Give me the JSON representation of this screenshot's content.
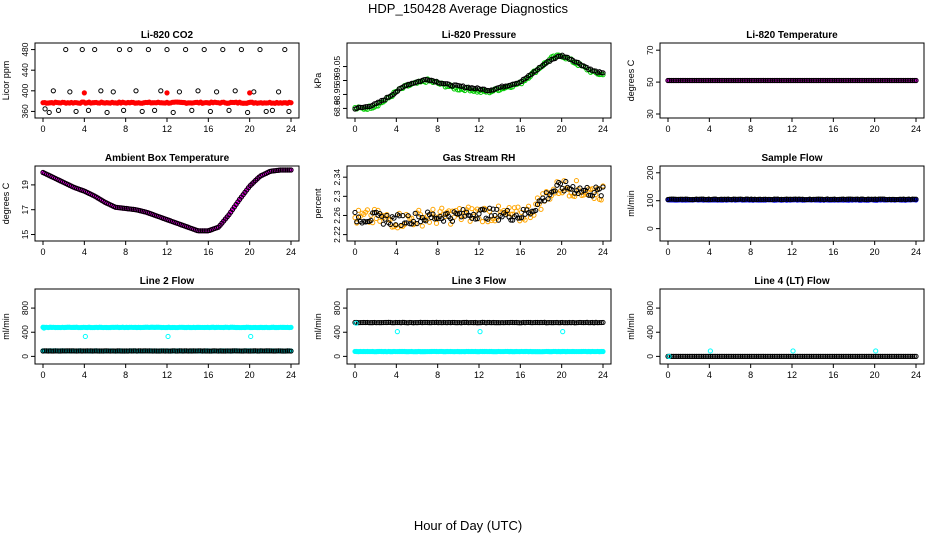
{
  "page": {
    "title": "HDP_150428  Average Diagnostics",
    "xlabel": "Hour of Day (UTC)"
  },
  "colors": {
    "black": "#000000",
    "red": "#ff0000",
    "green": "#00cc00",
    "magenta": "#ff00ff",
    "orange": "#ffa500",
    "blue": "#0000ff",
    "cyan": "#00ffff"
  },
  "chart_data": [
    {
      "type": "scatter",
      "title": "Li-820 CO2",
      "ylabel": "Licor ppm",
      "xlim": [
        0,
        24
      ],
      "xticks": [
        0,
        4,
        8,
        12,
        16,
        20,
        24
      ],
      "ylim": [
        355,
        485
      ],
      "yticks": [
        360,
        400,
        440,
        480
      ],
      "series": [
        {
          "color": "#ff0000",
          "filled": true,
          "kind": "flat",
          "value": 377,
          "noise": 1.2
        },
        {
          "color": "#000000",
          "filled": false,
          "kind": "points",
          "x": [
            0.2,
            0.6,
            1.0,
            1.5,
            2.2,
            2.6,
            3.2,
            3.8,
            4.4,
            5.0,
            5.6,
            6.2,
            6.8,
            7.4,
            7.8,
            8.4,
            9.0,
            9.6,
            10.2,
            10.8,
            11.4,
            12.0,
            12.6,
            13.2,
            13.8,
            14.4,
            15.0,
            15.6,
            16.2,
            16.8,
            17.4,
            18.0,
            18.6,
            19.2,
            19.8,
            20.4,
            21.0,
            21.6,
            22.2,
            22.8,
            23.4,
            23.8
          ],
          "y": [
            365,
            358,
            400,
            362,
            480,
            398,
            360,
            480,
            362,
            480,
            400,
            358,
            398,
            480,
            362,
            480,
            400,
            360,
            480,
            362,
            400,
            480,
            358,
            398,
            480,
            362,
            400,
            480,
            360,
            398,
            480,
            362,
            400,
            480,
            358,
            398,
            480,
            360,
            362,
            398,
            480,
            360
          ]
        },
        {
          "color": "#ff0000",
          "filled": true,
          "kind": "points",
          "x": [
            4.0,
            12.0,
            20.0
          ],
          "y": [
            396,
            396,
            396
          ]
        }
      ]
    },
    {
      "type": "scatter",
      "title": "Li-820 Pressure",
      "ylabel": "kPa",
      "xlim": [
        0,
        24
      ],
      "xticks": [
        0,
        4,
        8,
        12,
        16,
        20,
        24
      ],
      "ylim": [
        68.88,
        69.12
      ],
      "yticks": [
        68.9,
        68.95,
        69.0,
        69.05
      ],
      "series": [
        {
          "color": "#00cc00",
          "filled": false,
          "kind": "curve",
          "x": [
            0,
            1,
            2,
            3,
            4,
            5,
            6,
            7,
            8,
            9,
            10,
            11,
            12,
            13,
            14,
            15,
            16,
            17,
            18,
            19,
            20,
            21,
            22,
            23,
            24
          ],
          "y": [
            68.9,
            68.9,
            68.91,
            68.93,
            68.96,
            68.98,
            68.99,
            69.0,
            68.99,
            68.98,
            68.97,
            68.97,
            68.96,
            68.96,
            68.97,
            68.98,
            68.99,
            69.02,
            69.05,
            69.08,
            69.09,
            69.07,
            69.05,
            69.03,
            69.02
          ],
          "noise": 0.006
        },
        {
          "color": "#000000",
          "filled": false,
          "kind": "curve",
          "x": [
            0,
            1,
            2,
            3,
            4,
            5,
            6,
            7,
            8,
            9,
            10,
            11,
            12,
            13,
            14,
            15,
            16,
            17,
            18,
            19,
            20,
            21,
            22,
            23,
            24
          ],
          "y": [
            68.9,
            68.905,
            68.915,
            68.935,
            68.96,
            68.985,
            68.995,
            69.005,
            68.995,
            68.985,
            68.98,
            68.975,
            68.97,
            68.965,
            68.975,
            68.985,
            68.995,
            69.02,
            69.05,
            69.075,
            69.09,
            69.075,
            69.055,
            69.035,
            69.025
          ],
          "noise": 0.003
        }
      ]
    },
    {
      "type": "scatter",
      "title": "Li-820 Temperature",
      "ylabel": "degrees C",
      "xlim": [
        0,
        24
      ],
      "xticks": [
        0,
        4,
        8,
        12,
        16,
        20,
        24
      ],
      "ylim": [
        30,
        72
      ],
      "yticks": [
        30,
        50,
        70
      ],
      "series": [
        {
          "color": "#ff00ff",
          "filled": true,
          "kind": "flat",
          "value": 51,
          "noise": 0
        },
        {
          "color": "#000000",
          "filled": false,
          "kind": "flat",
          "value": 51,
          "noise": 0
        }
      ]
    },
    {
      "type": "scatter",
      "title": "Ambient Box Temperature",
      "ylabel": "degrees C",
      "xlim": [
        0,
        24
      ],
      "xticks": [
        0,
        4,
        8,
        12,
        16,
        20,
        24
      ],
      "ylim": [
        14.8,
        20.2
      ],
      "yticks": [
        15,
        17,
        19
      ],
      "series": [
        {
          "color": "#ff00ff",
          "filled": true,
          "kind": "curve",
          "x": [
            0,
            1,
            2,
            3,
            4,
            5,
            6,
            7,
            8,
            9,
            10,
            11,
            12,
            13,
            14,
            15,
            16,
            17,
            18,
            19,
            20,
            21,
            22,
            23,
            24
          ],
          "y": [
            20.0,
            19.6,
            19.2,
            18.8,
            18.5,
            18.1,
            17.6,
            17.2,
            17.1,
            17.0,
            16.8,
            16.5,
            16.2,
            15.9,
            15.6,
            15.3,
            15.3,
            15.6,
            16.6,
            17.8,
            18.9,
            19.7,
            20.1,
            20.2,
            20.2
          ],
          "noise": 0
        },
        {
          "color": "#000000",
          "filled": false,
          "kind": "curve",
          "x": [
            0,
            1,
            2,
            3,
            4,
            5,
            6,
            7,
            8,
            9,
            10,
            11,
            12,
            13,
            14,
            15,
            16,
            17,
            18,
            19,
            20,
            21,
            22,
            23,
            24
          ],
          "y": [
            20.0,
            19.6,
            19.2,
            18.8,
            18.5,
            18.1,
            17.6,
            17.2,
            17.1,
            17.0,
            16.8,
            16.5,
            16.2,
            15.9,
            15.6,
            15.3,
            15.3,
            15.6,
            16.6,
            17.8,
            18.9,
            19.7,
            20.1,
            20.2,
            20.2
          ],
          "noise": 0
        }
      ]
    },
    {
      "type": "scatter",
      "title": "Gas Stream RH",
      "ylabel": "percent",
      "xlim": [
        0,
        24
      ],
      "xticks": [
        0,
        4,
        8,
        12,
        16,
        20,
        24
      ],
      "ylim": [
        2.215,
        2.355
      ],
      "yticks": [
        2.22,
        2.26,
        2.3,
        2.34
      ],
      "series": [
        {
          "color": "#ffa500",
          "filled": false,
          "kind": "curve",
          "x": [
            0,
            2,
            4,
            6,
            8,
            10,
            12,
            14,
            16,
            17,
            18,
            19,
            20,
            21,
            22,
            23,
            24
          ],
          "y": [
            2.255,
            2.255,
            2.25,
            2.255,
            2.258,
            2.26,
            2.265,
            2.262,
            2.26,
            2.27,
            2.29,
            2.31,
            2.32,
            2.318,
            2.312,
            2.31,
            2.308
          ],
          "noise": 0.018
        },
        {
          "color": "#000000",
          "filled": false,
          "kind": "curve",
          "x": [
            0,
            2,
            4,
            6,
            8,
            10,
            12,
            14,
            16,
            17,
            18,
            19,
            20,
            21,
            22,
            23,
            24
          ],
          "y": [
            2.255,
            2.255,
            2.25,
            2.255,
            2.258,
            2.26,
            2.265,
            2.262,
            2.26,
            2.27,
            2.29,
            2.31,
            2.32,
            2.318,
            2.312,
            2.31,
            2.308
          ],
          "noise": 0.012
        }
      ]
    },
    {
      "type": "scatter",
      "title": "Sample Flow",
      "ylabel": "ml/min",
      "xlim": [
        0,
        24
      ],
      "xticks": [
        0,
        4,
        8,
        12,
        16,
        20,
        24
      ],
      "ylim": [
        -30,
        210
      ],
      "yticks": [
        0,
        100,
        200
      ],
      "series": [
        {
          "color": "#0000ff",
          "filled": true,
          "kind": "flat",
          "value": 103,
          "noise": 1
        },
        {
          "color": "#000000",
          "filled": false,
          "kind": "flat",
          "value": 105,
          "noise": 1
        }
      ]
    },
    {
      "type": "scatter",
      "title": "Line 2 Flow",
      "ylabel": "ml/min",
      "xlim": [
        0,
        24
      ],
      "xticks": [
        0,
        4,
        8,
        12,
        16,
        20,
        24
      ],
      "ylim": [
        -60,
        1050
      ],
      "yticks": [
        0,
        400,
        800
      ],
      "series": [
        {
          "color": "#00ffff",
          "filled": true,
          "kind": "flat",
          "value": 480,
          "noise": 3
        },
        {
          "color": "#00ffff",
          "filled": true,
          "kind": "flat",
          "value": 90,
          "noise": 2
        },
        {
          "color": "#000000",
          "filled": false,
          "kind": "flat",
          "value": 90,
          "noise": 2
        },
        {
          "color": "#00ffff",
          "filled": false,
          "kind": "points",
          "x": [
            0.1,
            4.1,
            12.1,
            20.1
          ],
          "y": [
            470,
            330,
            330,
            330
          ]
        }
      ]
    },
    {
      "type": "scatter",
      "title": "Line 3 Flow",
      "ylabel": "ml/min",
      "xlim": [
        0,
        24
      ],
      "xticks": [
        0,
        4,
        8,
        12,
        16,
        20,
        24
      ],
      "ylim": [
        -60,
        1050
      ],
      "yticks": [
        0,
        400,
        800
      ],
      "series": [
        {
          "color": "#000000",
          "filled": false,
          "kind": "flat",
          "value": 560,
          "noise": 3
        },
        {
          "color": "#00ffff",
          "filled": true,
          "kind": "flat",
          "value": 80,
          "noise": 2
        },
        {
          "color": "#00ffff",
          "filled": false,
          "kind": "points",
          "x": [
            0.1,
            4.1,
            12.1,
            20.1
          ],
          "y": [
            550,
            410,
            410,
            410
          ]
        }
      ]
    },
    {
      "type": "scatter",
      "title": "Line 4 (LT) Flow",
      "ylabel": "ml/min",
      "xlim": [
        0,
        24
      ],
      "xticks": [
        0,
        4,
        8,
        12,
        16,
        20,
        24
      ],
      "ylim": [
        -60,
        1050
      ],
      "yticks": [
        0,
        400,
        800
      ],
      "series": [
        {
          "color": "#000000",
          "filled": false,
          "kind": "flat",
          "value": 0,
          "noise": 0
        },
        {
          "color": "#00ffff",
          "filled": false,
          "kind": "points",
          "x": [
            0.1,
            4.1,
            12.1,
            20.1
          ],
          "y": [
            0,
            90,
            90,
            90
          ]
        }
      ]
    }
  ]
}
